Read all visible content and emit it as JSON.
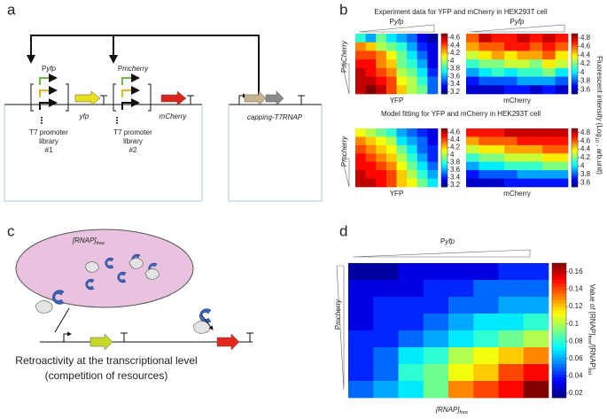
{
  "panel_a": {
    "label": "a",
    "promoter_1": [
      "P",
      "yfp"
    ],
    "promoter_2": [
      "P",
      "mcherry"
    ],
    "gene_1": "yfp",
    "gene_2": "mCherry",
    "library_1": [
      "T7 promoter",
      "library",
      "#1"
    ],
    "library_2": [
      "T7 promoter",
      "library",
      "#2"
    ],
    "gene_3": "capping-T7RNAP"
  },
  "panel_b": {
    "label": "b",
    "colorbar_label": [
      "Fluorescent intensity (Log",
      "10",
      " , arb.unit)"
    ],
    "rows": [
      {
        "title": "Experiment data for YFP and mCherry in HEK293T cell",
        "y_label": [
          "P",
          "mCherry"
        ],
        "heatmaps": [
          {
            "x_label": "YFP",
            "top_label": [
              "P",
              "yfp"
            ],
            "clim": [
              3.15,
              4.7
            ],
            "ticks": [
              4.6,
              4.4,
              4.2,
              4,
              3.8,
              3.6,
              3.4,
              3.2
            ],
            "values": [
              [
                3.8,
                3.6,
                3.9,
                3.7,
                3.6,
                3.5,
                3.3,
                3.2
              ],
              [
                4.3,
                4.2,
                4.0,
                3.9,
                3.8,
                3.6,
                3.4,
                3.3
              ],
              [
                4.4,
                4.4,
                4.3,
                4.1,
                3.9,
                3.7,
                3.5,
                3.3
              ],
              [
                4.5,
                4.5,
                4.3,
                4.2,
                3.9,
                3.8,
                3.6,
                3.3
              ],
              [
                4.6,
                4.5,
                4.4,
                4.3,
                4.0,
                3.9,
                3.7,
                3.4
              ],
              [
                4.6,
                4.6,
                4.5,
                4.4,
                4.1,
                4.0,
                3.8,
                3.5
              ],
              [
                4.6,
                4.7,
                4.6,
                4.4,
                4.2,
                4.0,
                3.9,
                3.5
              ]
            ]
          },
          {
            "x_label": "mCherry",
            "top_label": [
              "P",
              "yfp"
            ],
            "clim": [
              3.5,
              4.9
            ],
            "ticks": [
              4.8,
              4.6,
              4.4,
              4.2,
              4,
              3.8,
              3.6
            ],
            "values": [
              [
                4.6,
                4.8,
                4.7,
                4.7,
                4.8,
                4.7,
                4.8,
                4.7
              ],
              [
                4.5,
                4.6,
                4.6,
                4.7,
                4.7,
                4.6,
                4.7,
                4.6
              ],
              [
                4.3,
                4.4,
                4.5,
                4.4,
                4.5,
                4.5,
                4.6,
                4.4
              ],
              [
                4.1,
                4.2,
                4.2,
                4.3,
                4.3,
                4.2,
                4.4,
                4.3
              ],
              [
                3.9,
                4.0,
                4.1,
                4.0,
                4.1,
                4.1,
                4.2,
                4.0
              ],
              [
                3.7,
                3.8,
                3.8,
                3.8,
                3.9,
                3.9,
                3.9,
                3.8
              ],
              [
                3.6,
                3.6,
                3.6,
                3.7,
                3.7,
                3.6,
                3.7,
                3.6
              ]
            ]
          }
        ]
      },
      {
        "title": "Model fitting for YFP and mCherry in HEK293T cell",
        "y_label": [
          "P",
          "mcherry"
        ],
        "heatmaps": [
          {
            "x_label": "YFP",
            "clim": [
              3.15,
              4.7
            ],
            "ticks": [
              4.6,
              4.4,
              4.2,
              4,
              3.8,
              3.6,
              3.4,
              3.2
            ],
            "values": [
              [
                4.1,
                4.0,
                3.9,
                3.8,
                3.6,
                3.5,
                3.4,
                3.3
              ],
              [
                4.3,
                4.2,
                4.1,
                4.0,
                3.7,
                3.6,
                3.5,
                3.3
              ],
              [
                4.4,
                4.3,
                4.2,
                4.1,
                3.9,
                3.7,
                3.5,
                3.4
              ],
              [
                4.5,
                4.4,
                4.3,
                4.2,
                4.0,
                3.8,
                3.6,
                3.4
              ],
              [
                4.5,
                4.5,
                4.4,
                4.3,
                4.1,
                3.9,
                3.7,
                3.5
              ],
              [
                4.6,
                4.5,
                4.5,
                4.4,
                4.2,
                4.0,
                3.8,
                3.6
              ],
              [
                4.6,
                4.6,
                4.5,
                4.4,
                4.2,
                4.1,
                3.9,
                3.7
              ]
            ]
          },
          {
            "x_label": "mCherry",
            "clim": [
              3.5,
              4.9
            ],
            "ticks": [
              4.8,
              4.6,
              4.4,
              4.2,
              4,
              3.8,
              3.6
            ],
            "values": [
              [
                4.7,
                4.7,
                4.7,
                4.8,
                4.8,
                4.8,
                4.8,
                4.8
              ],
              [
                4.5,
                4.6,
                4.6,
                4.6,
                4.7,
                4.7,
                4.7,
                4.7
              ],
              [
                4.3,
                4.4,
                4.4,
                4.5,
                4.5,
                4.5,
                4.6,
                4.6
              ],
              [
                4.1,
                4.2,
                4.2,
                4.3,
                4.3,
                4.3,
                4.4,
                4.4
              ],
              [
                3.9,
                4.0,
                4.0,
                4.1,
                4.1,
                4.1,
                4.2,
                4.2
              ],
              [
                3.7,
                3.8,
                3.8,
                3.8,
                3.9,
                3.9,
                3.9,
                3.9
              ],
              [
                3.6,
                3.6,
                3.6,
                3.7,
                3.7,
                3.7,
                3.7,
                3.7
              ]
            ]
          }
        ]
      }
    ]
  },
  "panel_c": {
    "label": "c",
    "pool": [
      "[RNAP]",
      "free"
    ],
    "caption": [
      "Retroactivity at the transcriptional level",
      "(competition of resources)"
    ]
  },
  "panel_d": {
    "label": "d",
    "top_label": [
      "P",
      "yfp"
    ],
    "y_label": [
      "P",
      "mcherry"
    ],
    "x_label": [
      "[RNAP]",
      "free"
    ],
    "colorbar_label": [
      "Value of [RNAP]",
      "free",
      "/[RNAP]",
      "tot"
    ],
    "clim": [
      0.015,
      0.17
    ],
    "ticks": [
      0.16,
      0.14,
      0.12,
      0.1,
      0.08,
      0.06,
      0.04,
      0.02
    ],
    "values": [
      [
        0.02,
        0.02,
        0.03,
        0.03,
        0.03,
        0.03,
        0.04,
        0.04
      ],
      [
        0.03,
        0.03,
        0.03,
        0.04,
        0.04,
        0.05,
        0.05,
        0.05
      ],
      [
        0.03,
        0.04,
        0.04,
        0.04,
        0.05,
        0.05,
        0.06,
        0.06
      ],
      [
        0.03,
        0.04,
        0.04,
        0.05,
        0.06,
        0.07,
        0.07,
        0.08
      ],
      [
        0.04,
        0.04,
        0.05,
        0.06,
        0.07,
        0.08,
        0.09,
        0.1
      ],
      [
        0.04,
        0.05,
        0.07,
        0.08,
        0.1,
        0.11,
        0.12,
        0.13
      ],
      [
        0.04,
        0.05,
        0.08,
        0.09,
        0.11,
        0.12,
        0.14,
        0.15
      ],
      [
        0.05,
        0.06,
        0.07,
        0.09,
        0.13,
        0.14,
        0.15,
        0.17
      ]
    ]
  }
}
